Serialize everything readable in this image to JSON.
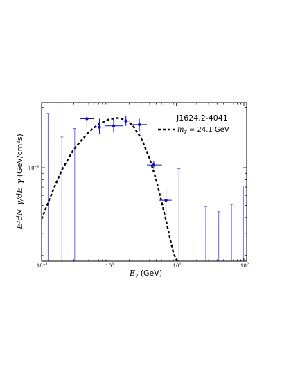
{
  "chart_data": {
    "type": "scatter",
    "title": "",
    "source_label": "J1624.2-4041",
    "xlabel": {
      "main": "E",
      "sub": "γ",
      "unit": " (GeV)"
    },
    "ylabel": {
      "text": "E²dN_γ/dE_γ",
      "unit": " (GeV/cm²s)"
    },
    "x_scale": "log",
    "y_scale": "log",
    "xlim": [
      0.1,
      110
    ],
    "ylim": [
      1.8e-10,
      3.3e-09
    ],
    "x_ticks": [
      {
        "value": 0.1,
        "base": "10",
        "exp": "−1"
      },
      {
        "value": 1,
        "base": "10",
        "exp": "0"
      },
      {
        "value": 10,
        "base": "10",
        "exp": "1"
      },
      {
        "value": 100,
        "base": "10",
        "exp": "2"
      }
    ],
    "y_ticks": [
      {
        "value": 1e-09,
        "base": "10",
        "exp": "−9"
      }
    ],
    "grid": false,
    "legend": {
      "position": "top-right",
      "line_label": "m",
      "line_sub": "χ",
      "line_value": " = 24.1 GeV"
    },
    "colors": {
      "data_points": "#1010c8",
      "upper_limits": "#6464ff",
      "model_line": "#000000"
    },
    "data_points": [
      {
        "x": 0.47,
        "y": 2.45e-09,
        "xerr": [
          0.37,
          0.6
        ],
        "yerr": [
          2.1e-09,
          2.85e-09
        ]
      },
      {
        "x": 0.72,
        "y": 2.1e-09,
        "xerr": [
          0.6,
          0.86
        ],
        "yerr": [
          1.85e-09,
          2.45e-09
        ]
      },
      {
        "x": 1.17,
        "y": 2.15e-09,
        "xerr": [
          0.86,
          1.6
        ],
        "yerr": [
          1.9e-09,
          2.5e-09
        ]
      },
      {
        "x": 1.78,
        "y": 2.35e-09,
        "xerr": [
          1.6,
          2.05
        ],
        "yerr": [
          2.15e-09,
          2.6e-09
        ]
      },
      {
        "x": 2.82,
        "y": 2.2e-09,
        "xerr": [
          2.05,
          3.65
        ],
        "yerr": [
          1.95e-09,
          2.45e-09
        ]
      },
      {
        "x": 4.6,
        "y": 1.05e-09,
        "xerr": [
          3.65,
          6.1
        ],
        "yerr": [
          9.8e-10,
          1.12e-09
        ]
      },
      {
        "x": 7.0,
        "y": 5.5e-10,
        "xerr": [
          5.6,
          8.5
        ],
        "yerr": [
          4e-10,
          7e-10
        ]
      }
    ],
    "upper_limits": [
      {
        "x": 0.125,
        "y_top": 2.7e-09
      },
      {
        "x": 0.2,
        "y_top": 1.75e-09
      },
      {
        "x": 0.31,
        "y_top": 2.05e-09
      },
      {
        "x": 10.9,
        "y_top": 9.8e-10
      },
      {
        "x": 17.6,
        "y_top": 2.55e-10
      },
      {
        "x": 27.2,
        "y_top": 4.9e-10
      },
      {
        "x": 42.4,
        "y_top": 4.45e-10
      },
      {
        "x": 65.6,
        "y_top": 5.1e-10
      },
      {
        "x": 98.5,
        "y_top": 7.15e-10
      }
    ],
    "model_curve": [
      [
        0.1,
        3.9e-10
      ],
      [
        0.15,
        6.7e-10
      ],
      [
        0.2,
        9.6e-10
      ],
      [
        0.3,
        1.4e-09
      ],
      [
        0.5,
        1.92e-09
      ],
      [
        0.7,
        2.22e-09
      ],
      [
        1.0,
        2.42e-09
      ],
      [
        1.3,
        2.48e-09
      ],
      [
        1.7,
        2.42e-09
      ],
      [
        2.2,
        2.2e-09
      ],
      [
        3.0,
        1.72e-09
      ],
      [
        4.0,
        1.18e-09
      ],
      [
        5.0,
        8e-10
      ],
      [
        6.0,
        5.4e-10
      ],
      [
        7.0,
        3.8e-10
      ],
      [
        8.0,
        2.75e-10
      ],
      [
        9.0,
        2.1e-10
      ],
      [
        10.0,
        1.85e-10
      ],
      [
        10.8,
        1.8e-10
      ]
    ]
  }
}
